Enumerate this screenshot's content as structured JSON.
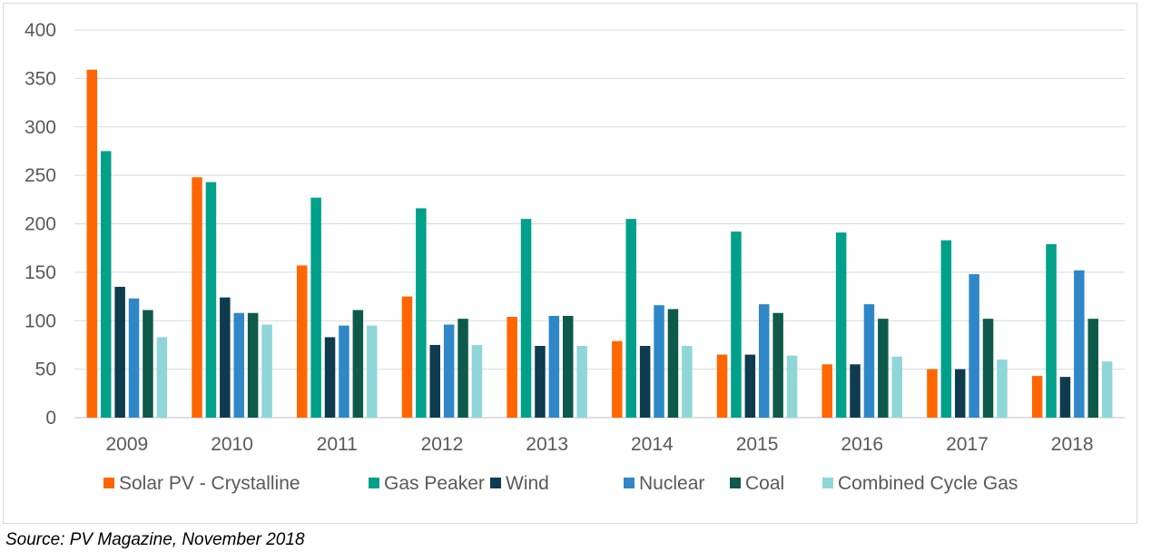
{
  "source": "Source: PV Magazine, November 2018",
  "chart_data": {
    "type": "bar",
    "title": "",
    "xlabel": "",
    "ylabel": "",
    "ylim": [
      0,
      400
    ],
    "yticks": [
      0,
      50,
      100,
      150,
      200,
      250,
      300,
      350,
      400
    ],
    "grid": "horizontal",
    "legend_position": "bottom",
    "categories": [
      "2009",
      "2010",
      "2011",
      "2012",
      "2013",
      "2014",
      "2015",
      "2016",
      "2017",
      "2018"
    ],
    "series": [
      {
        "name": "Solar PV - Crystalline",
        "color": "#ff6600",
        "values": [
          359,
          248,
          157,
          125,
          104,
          79,
          65,
          55,
          50,
          43
        ]
      },
      {
        "name": "Gas Peaker",
        "color": "#00a08a",
        "values": [
          275,
          243,
          227,
          216,
          205,
          205,
          192,
          191,
          183,
          179
        ]
      },
      {
        "name": "Wind",
        "color": "#0f3b4f",
        "values": [
          135,
          124,
          83,
          75,
          74,
          74,
          65,
          55,
          50,
          42
        ]
      },
      {
        "name": "Nuclear",
        "color": "#2f87c8",
        "values": [
          123,
          108,
          95,
          96,
          105,
          116,
          117,
          117,
          148,
          152
        ]
      },
      {
        "name": "Coal",
        "color": "#0d5a4b",
        "values": [
          111,
          108,
          111,
          102,
          105,
          112,
          108,
          102,
          102,
          102
        ]
      },
      {
        "name": "Combined Cycle Gas",
        "color": "#8fd6d8",
        "values": [
          83,
          96,
          95,
          75,
          74,
          74,
          64,
          63,
          60,
          58
        ]
      }
    ]
  }
}
